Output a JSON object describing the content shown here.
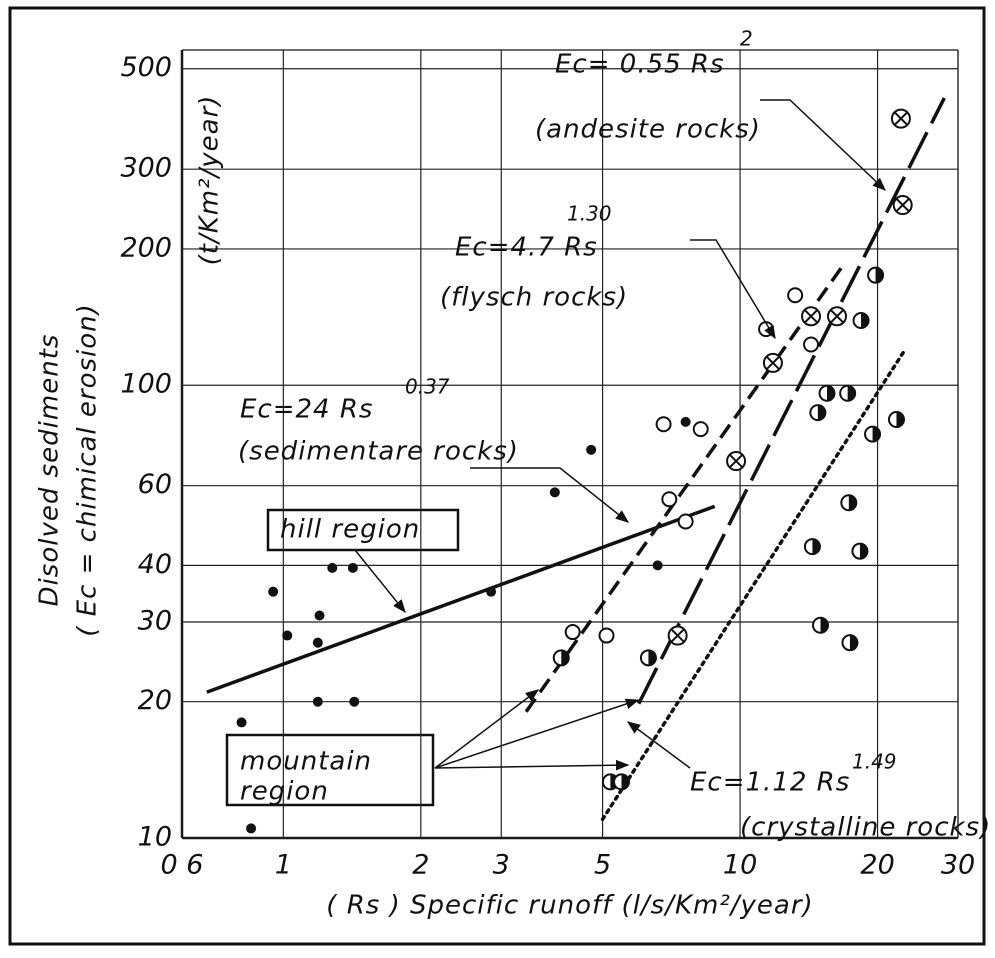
{
  "chart_data": {
    "type": "scatter",
    "log_x": true,
    "log_y": true,
    "grid": true,
    "xlabel": "( Rs )  Specific runoff  (l/s/Km²/year)",
    "ylabel": [
      "Disolved sediments",
      "( Ec = chimical erosion)",
      "(t/Km²/year)"
    ],
    "xlim": [
      0.6,
      30
    ],
    "ylim": [
      10,
      550
    ],
    "xticks": [
      {
        "value": 0.6,
        "label": "0 6"
      },
      1,
      2,
      3,
      5,
      10,
      20,
      30
    ],
    "yticks": [
      10,
      20,
      30,
      40,
      60,
      100,
      200,
      300,
      500
    ],
    "series": [
      {
        "marker": "filled",
        "x": [
          0.81,
          0.85,
          0.95,
          1.02,
          1.2,
          1.19,
          1.19,
          1.28,
          1.42,
          1.43,
          2.85,
          3.93,
          4.72,
          6.6,
          7.6
        ],
        "y": [
          18,
          10.5,
          35,
          28,
          31,
          27,
          20,
          39.5,
          39.5,
          20,
          35,
          58,
          72,
          40,
          83
        ]
      },
      {
        "marker": "open",
        "x": [
          4.3,
          5.1,
          6.8,
          7.0,
          7.6,
          8.2,
          11.4,
          13.2,
          14.3
        ],
        "y": [
          28.5,
          28,
          82,
          56,
          50,
          80,
          133,
          158,
          123
        ]
      },
      {
        "marker": "crossed",
        "x": [
          7.3,
          9.8,
          11.8,
          14.3,
          16.3,
          22.5,
          22.7
        ],
        "y": [
          28,
          68,
          112,
          142,
          142,
          388,
          250
        ]
      },
      {
        "marker": "half",
        "x": [
          4.06,
          6.3,
          14.8,
          15.5,
          17.2,
          19.8,
          18.4,
          19.5,
          22,
          17.3,
          14.4,
          18.3,
          15,
          17.4,
          5.2,
          5.5
        ],
        "y": [
          25,
          25,
          87,
          96,
          96,
          175,
          139,
          78,
          84,
          55,
          44,
          43,
          29.5,
          27,
          13.3,
          13.3
        ]
      }
    ],
    "lines": [
      {
        "style": "solid",
        "x": [
          0.68,
          8.8
        ],
        "y": [
          21,
          54
        ]
      },
      {
        "style": "short-dash",
        "x": [
          3.4,
          17
        ],
        "y": [
          19,
          187
        ]
      },
      {
        "style": "long-dash",
        "x": [
          6,
          28
        ],
        "y": [
          19.8,
          431
        ]
      },
      {
        "style": "dotted",
        "x": [
          5,
          23
        ],
        "y": [
          11,
          120
        ]
      }
    ],
    "annotations": [
      {
        "text": "Ec= 0.55 Rs",
        "sup": "2"
      },
      {
        "text": "(andesite rocks)"
      },
      {
        "text": "Ec=4.7 Rs",
        "sup": "1.30"
      },
      {
        "text": "(flysch rocks)"
      },
      {
        "text": "Ec=24 Rs",
        "sup": "0.37"
      },
      {
        "text": "(sedimentare rocks)"
      },
      {
        "text": "Ec=1.12 Rs",
        "sup": "1.49"
      },
      {
        "text": "(crystalline rocks)"
      },
      {
        "text": "hill region"
      },
      {
        "text": [
          "mountain",
          "region"
        ]
      }
    ]
  }
}
